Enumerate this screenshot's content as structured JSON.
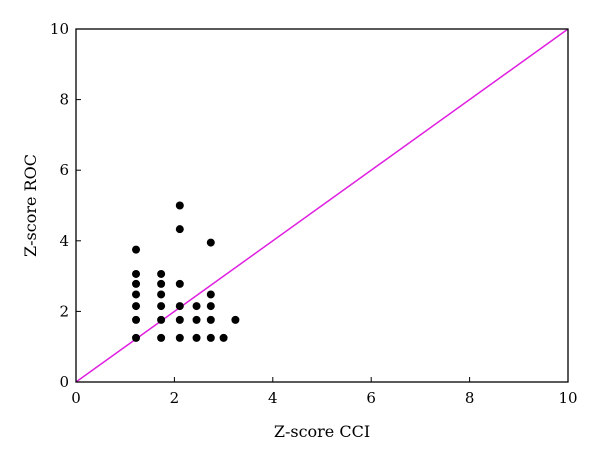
{
  "chart_data": {
    "type": "scatter",
    "title": "",
    "xlabel": "Z-score CCI",
    "ylabel": "Z-score ROC",
    "xlim": [
      0,
      10
    ],
    "ylim": [
      0,
      10
    ],
    "xticks": [
      "0",
      "2",
      "4",
      "6",
      "8",
      "10"
    ],
    "yticks": [
      "0",
      "2",
      "4",
      "6",
      "8",
      "10"
    ],
    "grid": false,
    "legend": "none",
    "colors": {
      "points": "#000000",
      "reference_line": "#e020e0",
      "frame": "#000000"
    },
    "reference_line": {
      "x": [
        0,
        10
      ],
      "y": [
        0,
        10
      ]
    },
    "series": [
      {
        "points": [
          {
            "x": 1.22,
            "y": 1.25
          },
          {
            "x": 1.22,
            "y": 1.76
          },
          {
            "x": 1.22,
            "y": 2.15
          },
          {
            "x": 1.22,
            "y": 2.48
          },
          {
            "x": 1.22,
            "y": 2.78
          },
          {
            "x": 1.22,
            "y": 3.06
          },
          {
            "x": 1.22,
            "y": 3.75
          },
          {
            "x": 1.73,
            "y": 1.25
          },
          {
            "x": 1.73,
            "y": 1.76
          },
          {
            "x": 1.73,
            "y": 2.15
          },
          {
            "x": 1.73,
            "y": 2.48
          },
          {
            "x": 1.73,
            "y": 2.78
          },
          {
            "x": 1.73,
            "y": 3.06
          },
          {
            "x": 2.11,
            "y": 1.25
          },
          {
            "x": 2.11,
            "y": 1.76
          },
          {
            "x": 2.11,
            "y": 2.15
          },
          {
            "x": 2.11,
            "y": 2.78
          },
          {
            "x": 2.11,
            "y": 4.33
          },
          {
            "x": 2.11,
            "y": 5.0
          },
          {
            "x": 2.45,
            "y": 1.25
          },
          {
            "x": 2.45,
            "y": 1.76
          },
          {
            "x": 2.45,
            "y": 2.15
          },
          {
            "x": 2.74,
            "y": 1.25
          },
          {
            "x": 2.74,
            "y": 1.76
          },
          {
            "x": 2.74,
            "y": 2.15
          },
          {
            "x": 2.74,
            "y": 2.48
          },
          {
            "x": 2.74,
            "y": 3.95
          },
          {
            "x": 3.0,
            "y": 1.25
          },
          {
            "x": 3.24,
            "y": 1.76
          }
        ]
      }
    ]
  }
}
